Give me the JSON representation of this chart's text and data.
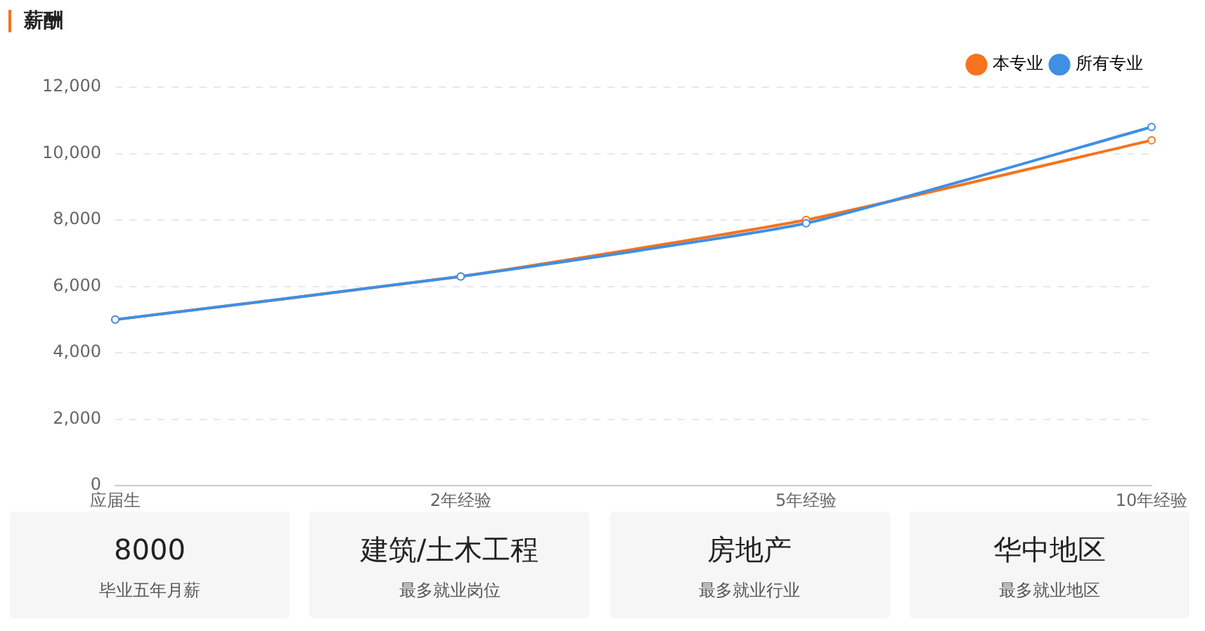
{
  "chart_data": [
    {
      "type": "line",
      "title": "薪酬",
      "categories": [
        "应届生",
        "2年经验",
        "5年经验",
        "10年经验"
      ],
      "series": [
        {
          "name": "本专业",
          "color": "#f7731c",
          "values": [
            5000,
            6300,
            8000,
            10400
          ]
        },
        {
          "name": "所有专业",
          "color": "#3f8fe5",
          "values": [
            5000,
            6300,
            7900,
            10800
          ]
        }
      ],
      "ylim": [
        0,
        12000
      ],
      "yticks": [
        {
          "value": 0,
          "label": "0"
        },
        {
          "value": 2000,
          "label": "2,000"
        },
        {
          "value": 4000,
          "label": "4,000"
        },
        {
          "value": 6000,
          "label": "6,000"
        },
        {
          "value": 8000,
          "label": "8,000"
        },
        {
          "value": 10000,
          "label": "10,000"
        },
        {
          "value": 12000,
          "label": "12,000"
        }
      ],
      "grid": "y",
      "legend": "top right",
      "marker": "circle",
      "line_style": "solid"
    },
    {
      "type": "other",
      "title": "8000",
      "subtitle": "毕业五年月薪"
    },
    {
      "type": "other",
      "title": "建筑/土木工程",
      "subtitle": "最多就业岗位"
    },
    {
      "type": "other",
      "title": "房地产",
      "subtitle": "最多就业行业"
    },
    {
      "type": "other",
      "title": "华中地区",
      "subtitle": "最多就业地区"
    }
  ]
}
